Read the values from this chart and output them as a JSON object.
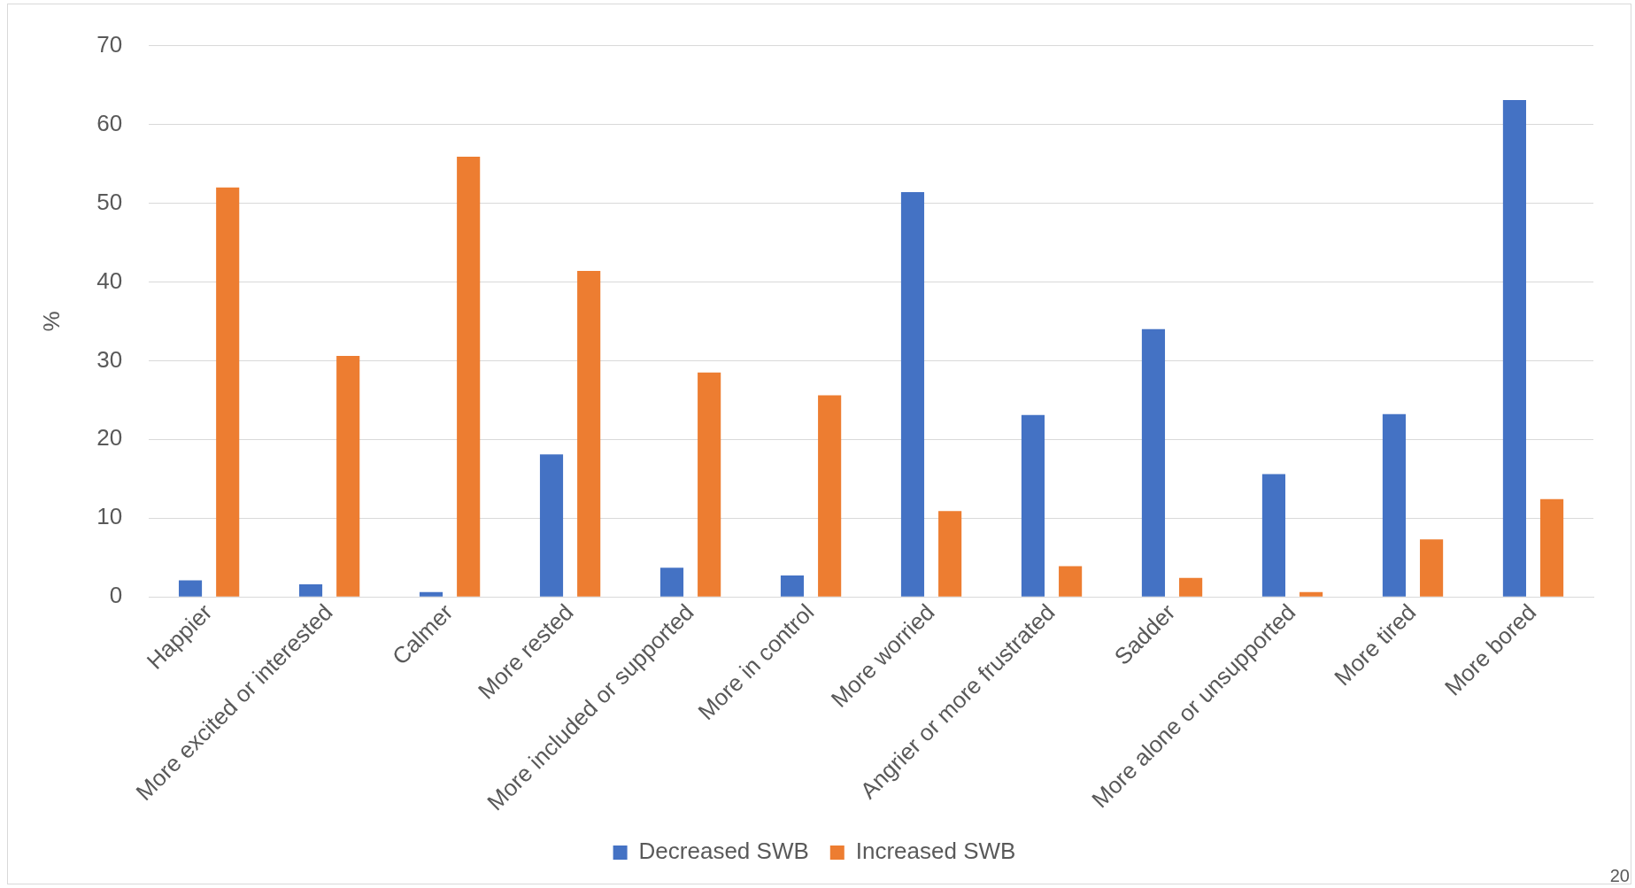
{
  "chart_data": {
    "type": "bar",
    "ylabel": "%",
    "categories": [
      "Happier",
      "More excited or interested",
      "Calmer",
      "More rested",
      "More included or supported",
      "More in control",
      "More worried",
      "Angrier or more frustrated",
      "Sadder",
      "More alone or unsupported",
      "More tired",
      "More bored"
    ],
    "series": [
      {
        "name": "Decreased SWB",
        "color": "#4472c4",
        "values": [
          2.1,
          1.6,
          0.6,
          18.1,
          3.7,
          2.7,
          51.4,
          23.1,
          34.0,
          15.6,
          23.2,
          63.1
        ]
      },
      {
        "name": "Increased SWB",
        "color": "#ed7d31",
        "values": [
          52.0,
          30.6,
          55.9,
          41.4,
          28.5,
          25.6,
          10.9,
          3.9,
          2.4,
          0.6,
          7.3,
          12.4
        ]
      }
    ],
    "ylim": [
      0,
      70
    ],
    "yticks": [
      0,
      10,
      20,
      30,
      40,
      50,
      60,
      70
    ],
    "grid": "y",
    "legend": "bottom",
    "annotations": [
      "20"
    ]
  }
}
